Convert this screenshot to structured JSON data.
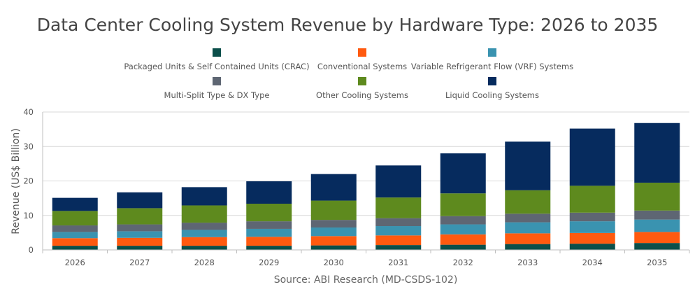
{
  "chart_data": {
    "type": "bar",
    "stacked": true,
    "title": "Data Center Cooling System Revenue by Hardware Type: 2026 to 2035",
    "ylabel": "Revenue (US$ Billion)",
    "xlabel": "",
    "source": "Source: ABI Research (MD-CSDS-102)",
    "ylim": [
      0,
      40
    ],
    "yticks": [
      0,
      10,
      20,
      30,
      40
    ],
    "grid": true,
    "legend_position": "top",
    "categories": [
      "2026",
      "2027",
      "2028",
      "2029",
      "2030",
      "2031",
      "2032",
      "2033",
      "2034",
      "2035"
    ],
    "series": [
      {
        "name": "Packaged Units & Self Contained Units (CRAC)",
        "color": "#0b4f4a",
        "values": [
          1.2,
          1.2,
          1.2,
          1.2,
          1.3,
          1.4,
          1.5,
          1.7,
          1.8,
          2.0
        ]
      },
      {
        "name": "Conventional Systems",
        "color": "#ff5a0f",
        "values": [
          2.2,
          2.3,
          2.5,
          2.6,
          2.7,
          2.8,
          3.0,
          3.1,
          3.1,
          3.2
        ]
      },
      {
        "name": "Variable Refrigerant Flow (VRF) Systems",
        "color": "#3a93b0",
        "values": [
          1.8,
          1.9,
          2.1,
          2.3,
          2.5,
          2.7,
          2.9,
          3.2,
          3.4,
          3.6
        ]
      },
      {
        "name": "Multi-Split Type & DX Type",
        "color": "#5e6673",
        "values": [
          1.9,
          2.0,
          2.1,
          2.2,
          2.2,
          2.3,
          2.4,
          2.5,
          2.5,
          2.6
        ]
      },
      {
        "name": "Other Cooling Systems",
        "color": "#5e8a1e",
        "values": [
          4.2,
          4.7,
          5.0,
          5.1,
          5.6,
          6.0,
          6.6,
          6.8,
          7.8,
          8.1
        ]
      },
      {
        "name": "Liquid Cooling Systems",
        "color": "#062b5e",
        "values": [
          3.8,
          4.6,
          5.3,
          6.5,
          7.7,
          9.3,
          11.6,
          14.1,
          16.6,
          17.3
        ]
      }
    ]
  }
}
